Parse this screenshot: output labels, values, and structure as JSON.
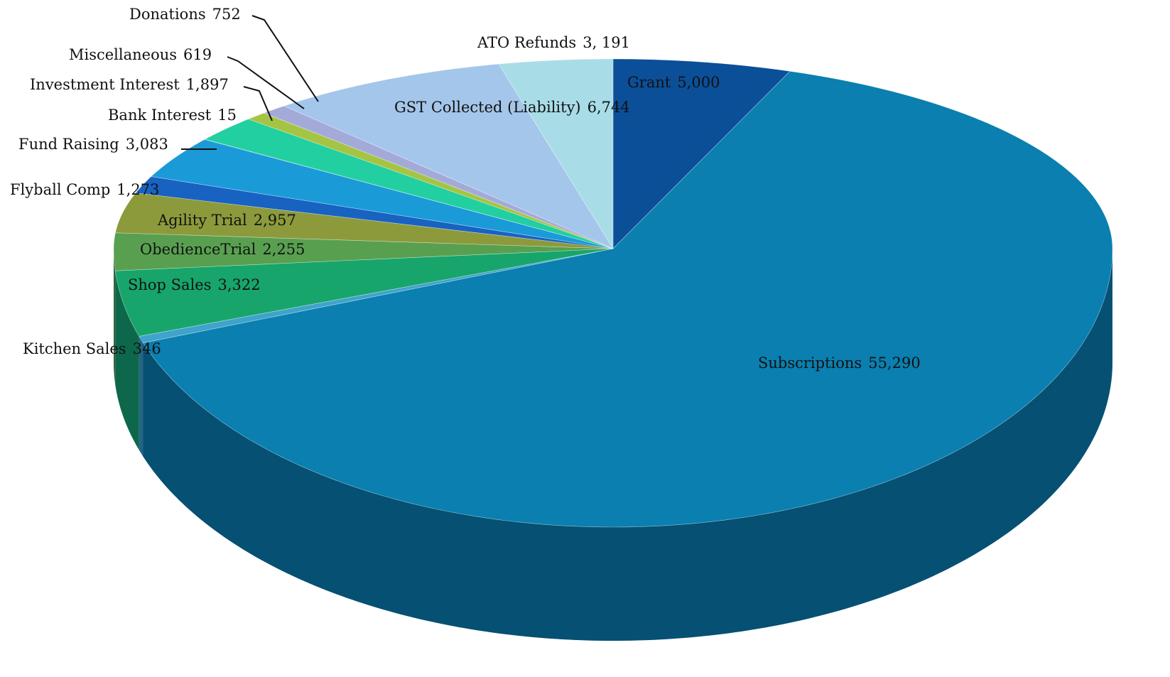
{
  "chart_data": {
    "type": "pie",
    "categories": [
      "Grant",
      "Subscriptions",
      "Kitchen Sales",
      "Shop Sales",
      "ObedienceTrial",
      "Agility Trial",
      "Flyball Comp",
      "Fund Raising",
      "Bank Interest",
      "Investment Interest",
      "Miscellaneous",
      "Donations",
      "GST Collected (Liability)",
      "ATO Refunds"
    ],
    "values": [
      5000,
      55290,
      346,
      3322,
      2255,
      2957,
      1273,
      3083,
      15,
      1897,
      619,
      752,
      6744,
      3191
    ],
    "value_labels": [
      "5,000",
      "55,290",
      "346",
      "3,322",
      "2,255",
      "2,957",
      "1,273",
      "3,083",
      "15",
      "1,897",
      "619",
      "752",
      "6,744",
      "3, 191"
    ],
    "colors": [
      "#0b4f98",
      "#0a7fb0",
      "#3fa3cc",
      "#17a56c",
      "#58a050",
      "#8c9a3c",
      "#1862c2",
      "#1a9bd8",
      "#22bf9c",
      "#22cfa0",
      "#a6c444",
      "#a4aad8",
      "#a4c6ea",
      "#a8dde8"
    ]
  }
}
